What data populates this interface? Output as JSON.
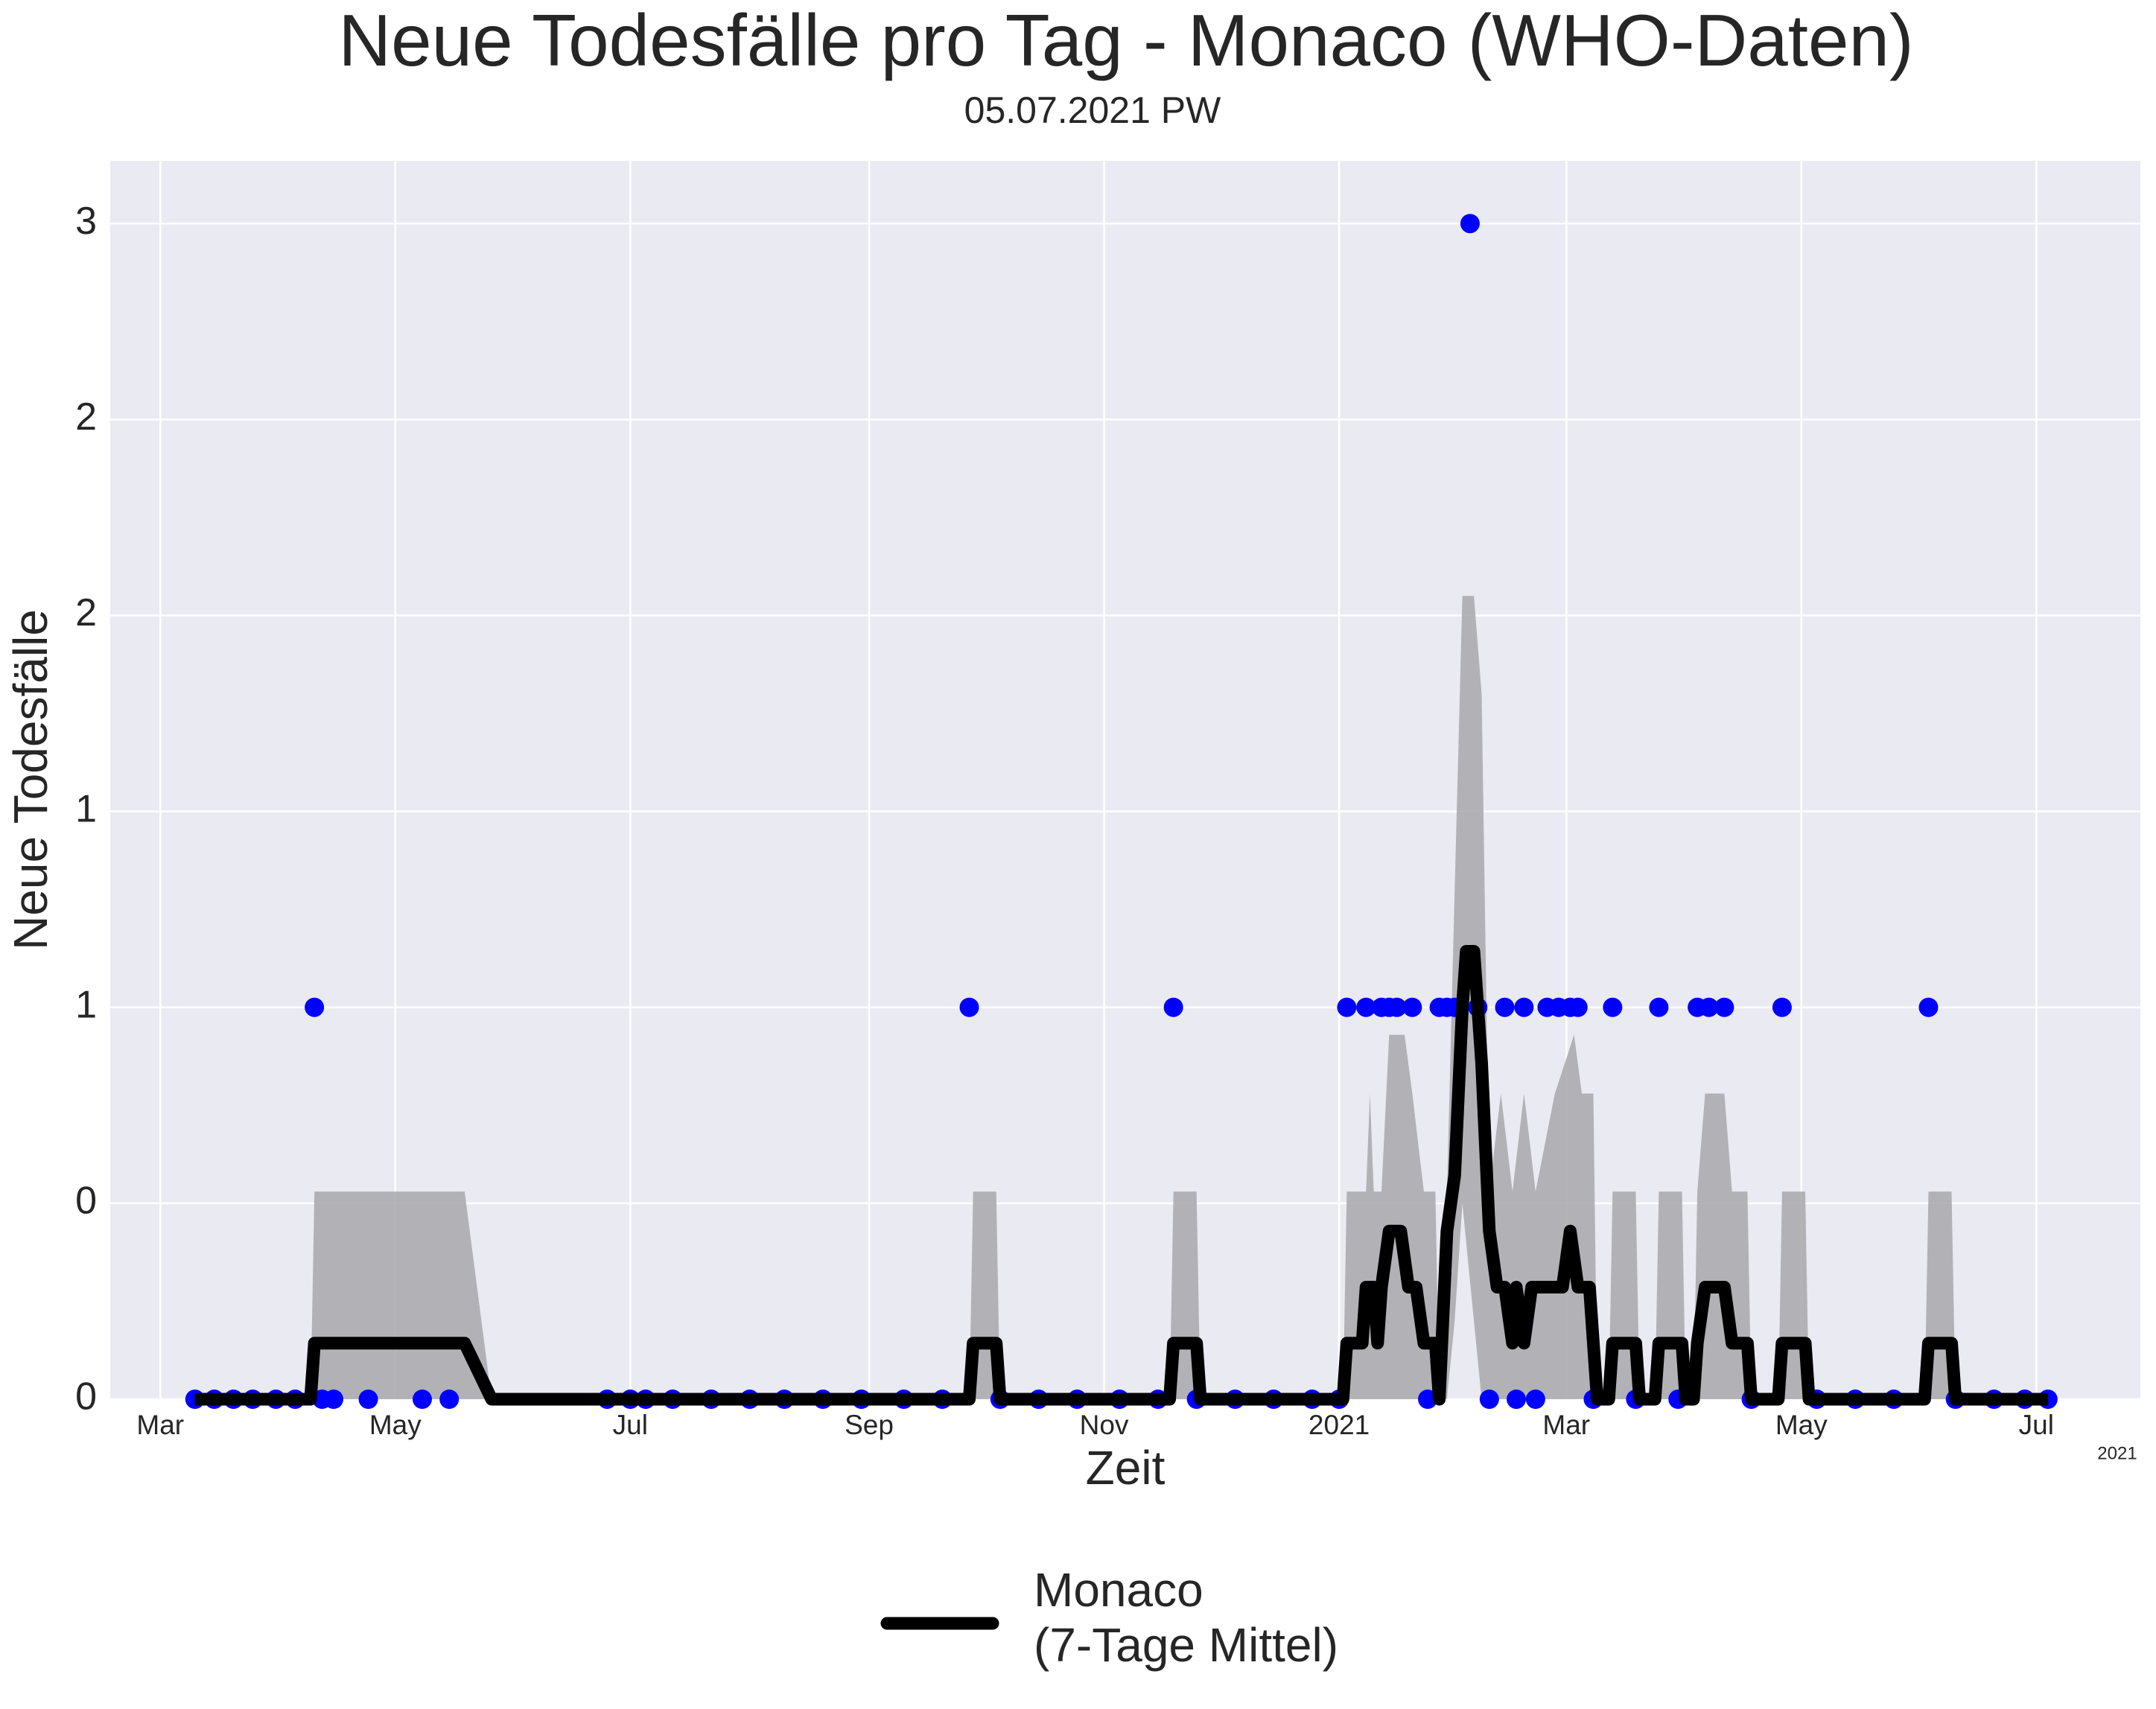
{
  "chart_data": {
    "type": "line",
    "title": "Neue Todesfälle pro Tag - Monaco (WHO-Daten)",
    "subtitle": "05.07.2021 PW",
    "xlabel": "Zeit",
    "ylabel": "Neue Todesfälle",
    "x_offset_label": "2021",
    "xlim": [
      "2020-02-17",
      "2021-07-28"
    ],
    "ylim": [
      0,
      3.16
    ],
    "xticks": [
      {
        "value": "2020-03-01",
        "label": "Mar"
      },
      {
        "value": "2020-05-01",
        "label": "May"
      },
      {
        "value": "2020-07-01",
        "label": "Jul"
      },
      {
        "value": "2020-09-01",
        "label": "Sep"
      },
      {
        "value": "2020-11-01",
        "label": "Nov"
      },
      {
        "value": "2021-01-01",
        "label": "2021"
      },
      {
        "value": "2021-03-01",
        "label": "Mar"
      },
      {
        "value": "2021-05-01",
        "label": "May"
      },
      {
        "value": "2021-07-01",
        "label": "Jul"
      }
    ],
    "yticks": [
      0,
      {
        "value": 0.5,
        "label": "0"
      },
      1,
      {
        "value": 1.5,
        "label": "1"
      },
      2,
      {
        "value": 2.5,
        "label": "2"
      },
      3
    ],
    "grid": true,
    "legend": "below",
    "band": {
      "color": "#a3a3a6",
      "x": [
        "2020-04-09",
        "2020-04-10",
        "2020-05-19",
        "2020-05-26",
        "2020-09-27",
        "2020-09-28",
        "2020-10-04",
        "2020-10-05",
        "2020-11-18",
        "2020-11-19",
        "2020-11-25",
        "2020-11-26",
        "2021-01-02",
        "2021-01-03",
        "2021-01-08",
        "2021-01-09",
        "2021-01-10",
        "2021-01-12",
        "2021-01-14",
        "2021-01-18",
        "2021-01-20",
        "2021-01-23",
        "2021-01-26",
        "2021-01-27",
        "2021-01-29",
        "2021-01-31",
        "2021-02-02",
        "2021-02-05",
        "2021-02-07",
        "2021-02-09",
        "2021-02-12",
        "2021-02-15",
        "2021-02-18",
        "2021-02-21",
        "2021-02-26",
        "2021-03-03",
        "2021-03-05",
        "2021-03-08",
        "2021-03-09",
        "2021-03-12",
        "2021-03-13",
        "2021-03-19",
        "2021-03-20",
        "2021-03-24",
        "2021-03-25",
        "2021-03-31",
        "2021-04-01",
        "2021-04-03",
        "2021-04-04",
        "2021-04-06",
        "2021-04-11",
        "2021-04-13",
        "2021-04-17",
        "2021-04-18",
        "2021-04-25",
        "2021-04-26",
        "2021-05-02",
        "2021-05-03",
        "2021-06-02",
        "2021-06-03",
        "2021-06-09",
        "2021-06-10"
      ],
      "lower": [
        0,
        0,
        0,
        0,
        0,
        0,
        0,
        0,
        0,
        0,
        0,
        0,
        0,
        0,
        0,
        0,
        0,
        0,
        0,
        0,
        0,
        0,
        0,
        0,
        0,
        0.2,
        0.5,
        0.2,
        0,
        0,
        0,
        0,
        0,
        0,
        0,
        0,
        0,
        0,
        0,
        0,
        0,
        0,
        0,
        0,
        0,
        0,
        0,
        0,
        0,
        0,
        0,
        0,
        0,
        0,
        0,
        0,
        0,
        0,
        0,
        0,
        0,
        0
      ],
      "upper": [
        0,
        0.53,
        0.53,
        0,
        0,
        0.53,
        0.53,
        0,
        0,
        0.53,
        0.53,
        0,
        0,
        0.53,
        0.53,
        0.78,
        0.53,
        0.53,
        0.93,
        0.93,
        0.78,
        0.53,
        0.53,
        0,
        0.53,
        1.3,
        2.05,
        2.05,
        1.8,
        0.53,
        0.78,
        0.53,
        0.78,
        0.53,
        0.78,
        0.93,
        0.78,
        0.78,
        0,
        0,
        0.53,
        0.53,
        0,
        0,
        0.53,
        0.53,
        0,
        0,
        0.53,
        0.78,
        0.78,
        0.53,
        0.53,
        0,
        0,
        0.53,
        0.53,
        0,
        0,
        0.53,
        0.53,
        0
      ]
    },
    "points": {
      "color": "#0000ff",
      "x": [
        "2020-03-10",
        "2020-03-15",
        "2020-03-20",
        "2020-03-25",
        "2020-03-31",
        "2020-04-05",
        "2020-04-10",
        "2020-04-12",
        "2020-04-15",
        "2020-04-24",
        "2020-05-08",
        "2020-05-15",
        "2020-06-25",
        "2020-07-01",
        "2020-07-05",
        "2020-07-12",
        "2020-07-22",
        "2020-08-01",
        "2020-08-10",
        "2020-08-20",
        "2020-08-30",
        "2020-09-10",
        "2020-09-20",
        "2020-09-27",
        "2020-10-05",
        "2020-10-15",
        "2020-10-25",
        "2020-11-05",
        "2020-11-15",
        "2020-11-19",
        "2020-11-25",
        "2020-12-05",
        "2020-12-15",
        "2020-12-25",
        "2021-01-01",
        "2021-01-03",
        "2021-01-08",
        "2021-01-12",
        "2021-01-14",
        "2021-01-16",
        "2021-01-20",
        "2021-01-24",
        "2021-01-27",
        "2021-01-29",
        "2021-01-31",
        "2021-02-04",
        "2021-02-06",
        "2021-02-09",
        "2021-02-13",
        "2021-02-16",
        "2021-02-18",
        "2021-02-21",
        "2021-02-24",
        "2021-02-27",
        "2021-03-02",
        "2021-03-04",
        "2021-03-08",
        "2021-03-13",
        "2021-03-19",
        "2021-03-25",
        "2021-03-30",
        "2021-04-04",
        "2021-04-07",
        "2021-04-11",
        "2021-04-18",
        "2021-04-26",
        "2021-05-05",
        "2021-05-15",
        "2021-05-25",
        "2021-06-03",
        "2021-06-10",
        "2021-06-20",
        "2021-06-28",
        "2021-07-04"
      ],
      "values": [
        0,
        0,
        0,
        0,
        0,
        0,
        1,
        0,
        0,
        0,
        0,
        0,
        0,
        0,
        0,
        0,
        0,
        0,
        0,
        0,
        0,
        0,
        0,
        1,
        0,
        0,
        0,
        0,
        0,
        1,
        0,
        0,
        0,
        0,
        0,
        1,
        1,
        1,
        1,
        1,
        1,
        0,
        1,
        1,
        1,
        3,
        1,
        0,
        1,
        0,
        1,
        0,
        1,
        1,
        1,
        1,
        0,
        1,
        0,
        1,
        0,
        1,
        1,
        1,
        0,
        1,
        0,
        0,
        0,
        1,
        0,
        0,
        0,
        0
      ]
    },
    "series": [
      {
        "name": "Monaco\n(7-Tage Mittel)",
        "color": "#000000",
        "x": [
          "2020-03-10",
          "2020-04-09",
          "2020-04-10",
          "2020-05-19",
          "2020-05-26",
          "2020-09-27",
          "2020-09-28",
          "2020-10-04",
          "2020-10-05",
          "2020-11-18",
          "2020-11-19",
          "2020-11-25",
          "2020-11-26",
          "2021-01-02",
          "2021-01-03",
          "2021-01-07",
          "2021-01-08",
          "2021-01-10",
          "2021-01-11",
          "2021-01-12",
          "2021-01-14",
          "2021-01-17",
          "2021-01-19",
          "2021-01-21",
          "2021-01-23",
          "2021-01-26",
          "2021-01-27",
          "2021-01-29",
          "2021-01-31",
          "2021-02-02",
          "2021-02-03",
          "2021-02-05",
          "2021-02-07",
          "2021-02-09",
          "2021-02-11",
          "2021-02-13",
          "2021-02-15",
          "2021-02-16",
          "2021-02-18",
          "2021-02-20",
          "2021-02-24",
          "2021-02-28",
          "2021-03-02",
          "2021-03-04",
          "2021-03-07",
          "2021-03-09",
          "2021-03-12",
          "2021-03-13",
          "2021-03-19",
          "2021-03-20",
          "2021-03-24",
          "2021-03-25",
          "2021-03-31",
          "2021-04-01",
          "2021-04-03",
          "2021-04-04",
          "2021-04-06",
          "2021-04-11",
          "2021-04-13",
          "2021-04-17",
          "2021-04-18",
          "2021-04-25",
          "2021-04-26",
          "2021-05-02",
          "2021-05-03",
          "2021-06-02",
          "2021-06-03",
          "2021-06-09",
          "2021-06-10",
          "2021-07-04"
        ],
        "values": [
          0,
          0,
          0.143,
          0.143,
          0,
          0,
          0.143,
          0.143,
          0,
          0,
          0.143,
          0.143,
          0,
          0,
          0.143,
          0.143,
          0.286,
          0.286,
          0.143,
          0.286,
          0.429,
          0.429,
          0.286,
          0.286,
          0.143,
          0.143,
          0,
          0.429,
          0.571,
          1.0,
          1.143,
          1.143,
          0.857,
          0.429,
          0.286,
          0.286,
          0.143,
          0.286,
          0.143,
          0.286,
          0.286,
          0.286,
          0.429,
          0.286,
          0.286,
          0,
          0,
          0.143,
          0.143,
          0,
          0,
          0.143,
          0.143,
          0,
          0,
          0.143,
          0.286,
          0.286,
          0.143,
          0.143,
          0,
          0,
          0.143,
          0.143,
          0,
          0,
          0.143,
          0.143,
          0,
          0
        ]
      }
    ]
  }
}
